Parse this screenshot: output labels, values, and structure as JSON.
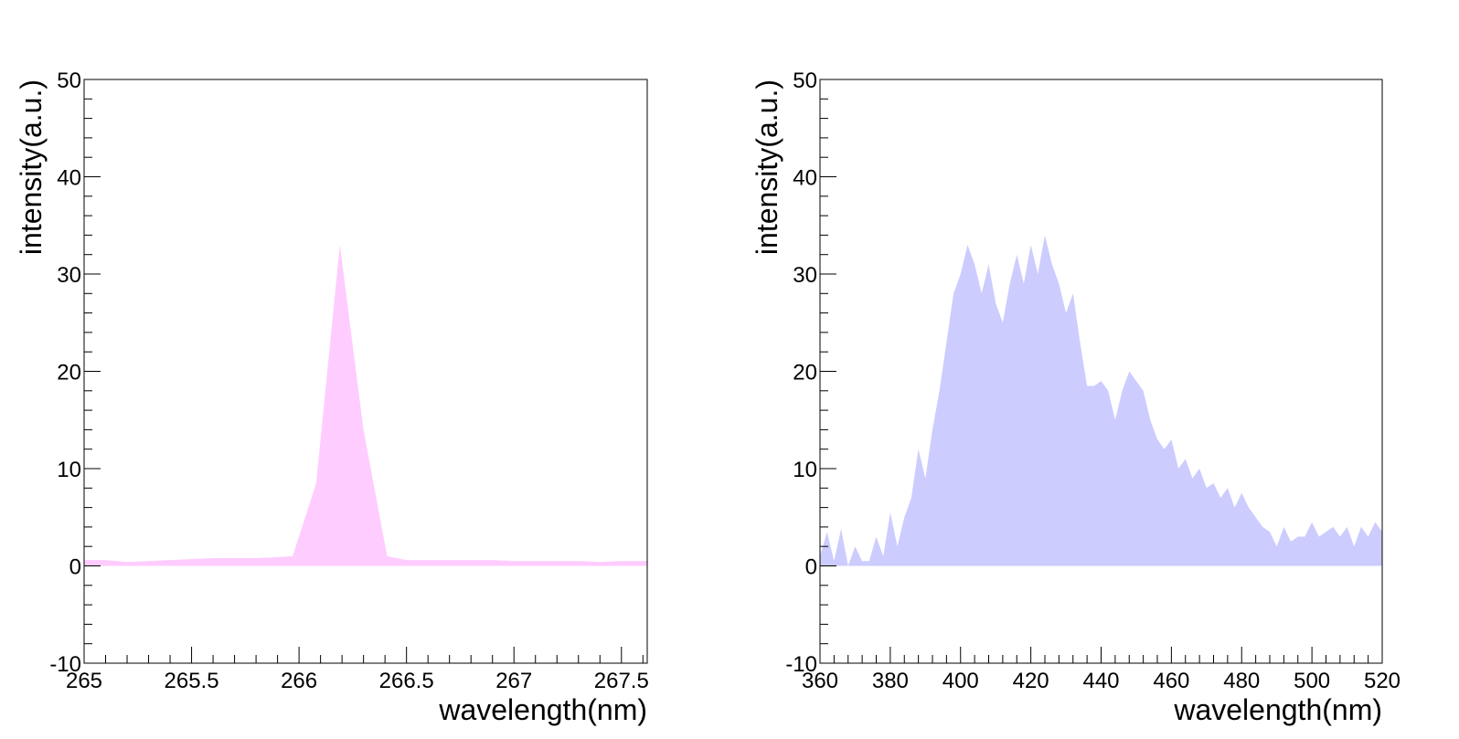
{
  "chart_data": [
    {
      "type": "area",
      "title": "",
      "xlabel": "wavelength(nm)",
      "ylabel": "intensity(a.u.)",
      "xlim": [
        265,
        267.62
      ],
      "ylim": [
        -10,
        50
      ],
      "xtick_values": [
        265,
        265.5,
        266,
        266.5,
        267,
        267.5
      ],
      "xtick_labels": [
        "265",
        "265.5",
        "266",
        "266.5",
        "267",
        "267.5"
      ],
      "ytick_values": [
        -10,
        0,
        10,
        20,
        30,
        40,
        50
      ],
      "ytick_labels": [
        "-10",
        "0",
        "10",
        "20",
        "30",
        "40",
        "50"
      ],
      "grid": false,
      "color": "#ffccff",
      "series": [
        {
          "x": [
            265.0,
            265.1,
            265.2,
            265.3,
            265.4,
            265.5,
            265.6,
            265.7,
            265.8,
            265.9,
            265.97,
            266.08,
            266.19,
            266.3,
            266.41,
            266.5,
            266.6,
            266.7,
            266.8,
            266.9,
            267.0,
            267.1,
            267.2,
            267.3,
            267.4,
            267.5,
            267.62
          ],
          "y": [
            0.6,
            0.6,
            0.4,
            0.5,
            0.6,
            0.7,
            0.8,
            0.8,
            0.8,
            0.9,
            1.0,
            8.5,
            33.0,
            14.0,
            1.0,
            0.6,
            0.6,
            0.6,
            0.6,
            0.6,
            0.5,
            0.5,
            0.5,
            0.5,
            0.4,
            0.5,
            0.5
          ]
        }
      ]
    },
    {
      "type": "area",
      "title": "",
      "xlabel": "wavelength(nm)",
      "ylabel": "intensity(a.u.)",
      "xlim": [
        360,
        520
      ],
      "ylim": [
        -10,
        50
      ],
      "xtick_values": [
        360,
        380,
        400,
        420,
        440,
        460,
        480,
        500,
        520
      ],
      "xtick_labels": [
        "360",
        "380",
        "400",
        "420",
        "440",
        "460",
        "480",
        "500",
        "520"
      ],
      "ytick_values": [
        -10,
        0,
        10,
        20,
        30,
        40,
        50
      ],
      "ytick_labels": [
        "-10",
        "0",
        "10",
        "20",
        "30",
        "40",
        "50"
      ],
      "grid": false,
      "color": "#ccccff",
      "series": [
        {
          "x": [
            360,
            362,
            364,
            366,
            368,
            370,
            372,
            374,
            376,
            378,
            380,
            382,
            384,
            386,
            388,
            390,
            392,
            394,
            396,
            398,
            400,
            402,
            404,
            406,
            408,
            410,
            412,
            414,
            416,
            418,
            420,
            422,
            424,
            426,
            428,
            430,
            432,
            434,
            436,
            438,
            440,
            442,
            444,
            446,
            448,
            450,
            452,
            454,
            456,
            458,
            460,
            462,
            464,
            466,
            468,
            470,
            472,
            474,
            476,
            478,
            480,
            482,
            484,
            486,
            488,
            490,
            492,
            494,
            496,
            498,
            500,
            502,
            504,
            506,
            508,
            510,
            512,
            514,
            516,
            518,
            520
          ],
          "y": [
            1.0,
            3.5,
            0.5,
            3.8,
            0.0,
            2.0,
            0.5,
            0.5,
            3.0,
            1.0,
            5.5,
            2.0,
            5.0,
            7.0,
            12.0,
            9.0,
            14.0,
            18.0,
            23.0,
            28.0,
            30.0,
            33.0,
            31.0,
            28.0,
            31.0,
            27.0,
            25.0,
            29.0,
            32.0,
            29.0,
            33.0,
            30.0,
            34.0,
            31.0,
            29.0,
            26.0,
            28.0,
            23.0,
            18.5,
            18.5,
            19.0,
            18.0,
            15.0,
            18.0,
            20.0,
            19.0,
            18.0,
            15.0,
            13.0,
            12.0,
            13.0,
            10.0,
            11.0,
            9.0,
            10.0,
            8.0,
            8.5,
            7.0,
            8.0,
            6.0,
            7.5,
            6.0,
            5.0,
            4.0,
            3.5,
            2.0,
            4.0,
            2.5,
            3.0,
            3.0,
            4.5,
            3.0,
            3.5,
            4.0,
            3.0,
            4.0,
            2.0,
            4.0,
            3.0,
            4.5,
            3.5
          ]
        }
      ]
    }
  ]
}
